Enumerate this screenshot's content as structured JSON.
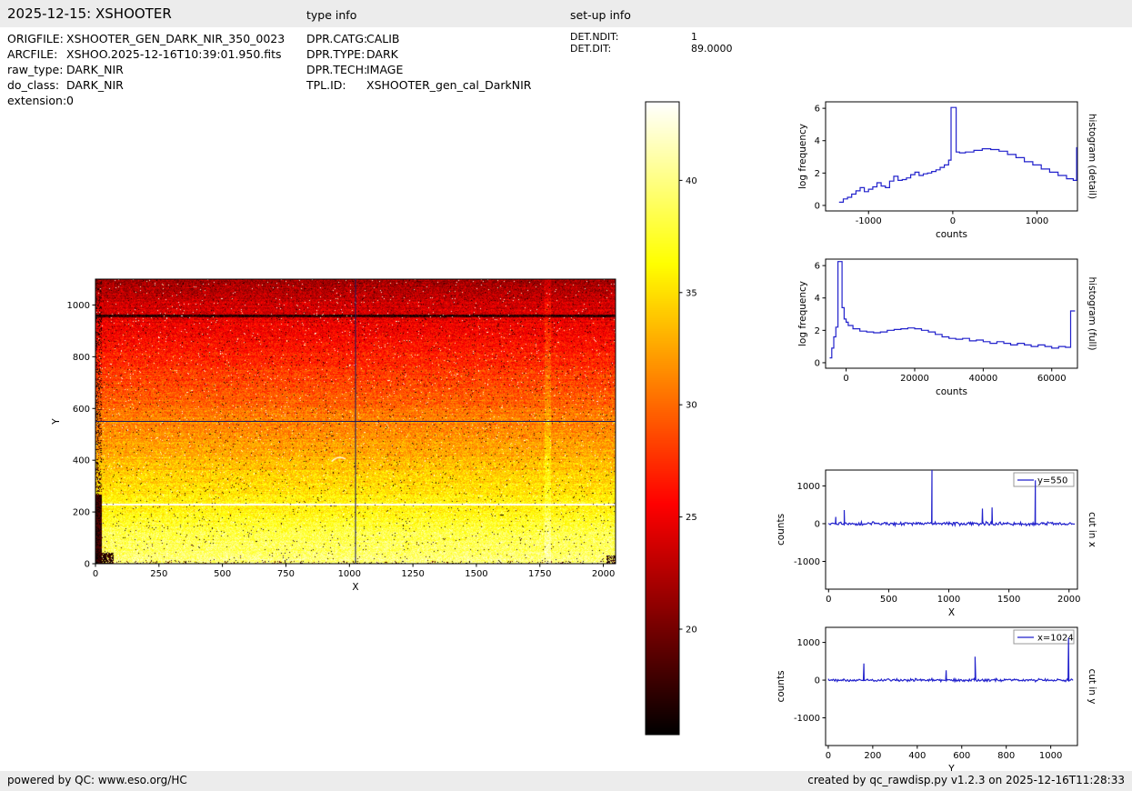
{
  "header": {
    "title": "2025-12-15: XSHOOTER",
    "type_info_label": "type info",
    "setup_info_label": "set-up info"
  },
  "metadata": {
    "left": [
      {
        "label": "ORIGFILE:",
        "value": "XSHOOTER_GEN_DARK_NIR_350_0023"
      },
      {
        "label": "ARCFILE:",
        "value": "XSHOO.2025-12-16T10:39:01.950.fits"
      },
      {
        "label": "raw_type:",
        "value": "DARK_NIR"
      },
      {
        "label": "do_class:",
        "value": "DARK_NIR"
      },
      {
        "label": "extension:",
        "value": "0"
      }
    ],
    "middle": [
      {
        "label": "DPR.CATG:",
        "value": "CALIB"
      },
      {
        "label": "DPR.TYPE:",
        "value": "DARK"
      },
      {
        "label": "DPR.TECH:",
        "value": "IMAGE"
      },
      {
        "label": "TPL.ID:",
        "value": "XSHOOTER_gen_cal_DarkNIR"
      }
    ],
    "right": [
      {
        "label": "DET.NDIT:",
        "value": "1"
      },
      {
        "label": "DET.DIT:",
        "value": "89.0000"
      }
    ]
  },
  "footer": {
    "left": "powered by QC: www.eso.org/HC",
    "right": "created by qc_rawdisp.py v1.2.3 on 2025-12-16T11:28:33"
  },
  "colors": {
    "plot_line": "#2222cc",
    "crosshair": "#1b1b60",
    "frame": "#000000",
    "bar_bg": "#ececec"
  },
  "chart_data": [
    {
      "id": "detector-image",
      "type": "heatmap",
      "title": "",
      "xlabel": "X",
      "ylabel": "Y",
      "xlim": [
        0,
        2048
      ],
      "ylim": [
        0,
        1100
      ],
      "xticks": [
        0,
        250,
        500,
        750,
        1000,
        1250,
        1500,
        1750,
        2000
      ],
      "yticks": [
        0,
        200,
        400,
        600,
        800,
        1000
      ],
      "colormap": "hot",
      "vmin": 15.3,
      "vmax": 43.5,
      "value_top": 22,
      "value_bottom": 40,
      "crosshair": {
        "x": 1024,
        "y": 550
      },
      "features": [
        {
          "type": "hline",
          "y": 960,
          "style": "dark"
        },
        {
          "type": "hline",
          "y": 230,
          "style": "bright"
        },
        {
          "type": "vline",
          "x": 1780,
          "style": "bright"
        }
      ],
      "description": "XSHOOTER NIR raw dark frame; counts rise from ~20 at top (dark red) to ~40 at bottom (pale yellow); black bad-pixel blobs along left edge and bottom corners; crosshair cuts at x=1024 and y=550"
    },
    {
      "id": "colorbar",
      "type": "colorbar",
      "colormap": "hot",
      "vmin": 15.3,
      "vmax": 43.5,
      "ticks": [
        20,
        25,
        30,
        35,
        40
      ]
    },
    {
      "id": "histogram-detail",
      "type": "line",
      "step": true,
      "side_label": "histogram (detail)",
      "xlabel": "counts",
      "ylabel": "log frequency",
      "xlim": [
        -1510,
        1480
      ],
      "ylim": [
        -0.34,
        6.4
      ],
      "xticks": [
        -1000,
        0,
        1000
      ],
      "yticks": [
        0,
        2,
        4,
        6
      ],
      "x": [
        -1350,
        -1300,
        -1250,
        -1200,
        -1150,
        -1100,
        -1050,
        -1000,
        -950,
        -900,
        -850,
        -800,
        -750,
        -700,
        -650,
        -600,
        -550,
        -500,
        -450,
        -400,
        -350,
        -300,
        -250,
        -200,
        -150,
        -100,
        -50,
        -20,
        0,
        40,
        80,
        150,
        250,
        350,
        450,
        550,
        650,
        750,
        850,
        950,
        1050,
        1150,
        1250,
        1350,
        1430,
        1470
      ],
      "y": [
        0.2,
        0.4,
        0.5,
        0.7,
        0.9,
        1.1,
        0.85,
        1.0,
        1.15,
        1.4,
        1.2,
        1.1,
        1.5,
        1.8,
        1.55,
        1.6,
        1.7,
        1.9,
        2.05,
        1.85,
        1.95,
        2.0,
        2.1,
        2.2,
        2.35,
        2.5,
        2.8,
        6.05,
        6.05,
        3.3,
        3.25,
        3.3,
        3.4,
        3.5,
        3.45,
        3.35,
        3.15,
        2.95,
        2.7,
        2.5,
        2.25,
        2.05,
        1.85,
        1.65,
        1.55,
        3.6
      ]
    },
    {
      "id": "histogram-full",
      "type": "line",
      "step": true,
      "side_label": "histogram (full)",
      "xlabel": "counts",
      "ylabel": "log frequency",
      "xlim": [
        -6000,
        67500
      ],
      "ylim": [
        -0.34,
        6.4
      ],
      "xticks": [
        0,
        20000,
        40000,
        60000
      ],
      "yticks": [
        0,
        2,
        4,
        6
      ],
      "x": [
        -4800,
        -4200,
        -3600,
        -3000,
        -2400,
        -1800,
        -1200,
        -600,
        0,
        600,
        2000,
        4000,
        6000,
        8000,
        10000,
        12000,
        14000,
        16000,
        18000,
        20000,
        22000,
        24000,
        26000,
        28000,
        30000,
        32000,
        34000,
        36000,
        38000,
        40000,
        42000,
        44000,
        46000,
        48000,
        50000,
        52000,
        54000,
        56000,
        58000,
        60000,
        62000,
        64000,
        65500,
        66800
      ],
      "y": [
        0.3,
        0.9,
        1.6,
        2.2,
        6.25,
        6.25,
        3.4,
        2.7,
        2.5,
        2.3,
        2.1,
        1.95,
        1.9,
        1.85,
        1.9,
        2.0,
        2.05,
        2.1,
        2.15,
        2.1,
        2.0,
        1.9,
        1.75,
        1.6,
        1.5,
        1.45,
        1.5,
        1.35,
        1.4,
        1.3,
        1.2,
        1.3,
        1.2,
        1.1,
        1.2,
        1.1,
        1.0,
        1.1,
        1.0,
        0.9,
        1.0,
        0.95,
        3.2,
        3.2
      ]
    },
    {
      "id": "cut-in-x",
      "type": "spikes",
      "side_label": "cut in x",
      "xlabel": "X",
      "ylabel": "counts",
      "legend": "y=550",
      "xlim": [
        -25,
        2070
      ],
      "ylim": [
        -1735,
        1420
      ],
      "xticks": [
        0,
        500,
        1000,
        1500,
        2000
      ],
      "yticks": [
        -1000,
        0,
        1000
      ],
      "baseline": 0,
      "noise_amp": 55,
      "n_points": 300,
      "x_range": [
        0,
        2048
      ],
      "spikes": [
        {
          "x": 60,
          "y": 180
        },
        {
          "x": 130,
          "y": 360
        },
        {
          "x": 860,
          "y": 1420
        },
        {
          "x": 1280,
          "y": 400
        },
        {
          "x": 1360,
          "y": 430
        },
        {
          "x": 1720,
          "y": 1150
        }
      ]
    },
    {
      "id": "cut-in-y",
      "type": "spikes",
      "side_label": "cut in y",
      "xlabel": "Y",
      "ylabel": "counts",
      "legend": "x=1024",
      "xlim": [
        -12,
        1120
      ],
      "ylim": [
        -1735,
        1400
      ],
      "xticks": [
        0,
        200,
        400,
        600,
        800,
        1000
      ],
      "yticks": [
        -1000,
        0,
        1000
      ],
      "baseline": 0,
      "noise_amp": 45,
      "n_points": 300,
      "x_range": [
        0,
        1100
      ],
      "spikes": [
        {
          "x": 160,
          "y": 440
        },
        {
          "x": 530,
          "y": 260
        },
        {
          "x": 660,
          "y": 620
        },
        {
          "x": 1080,
          "y": 1120
        }
      ]
    }
  ]
}
